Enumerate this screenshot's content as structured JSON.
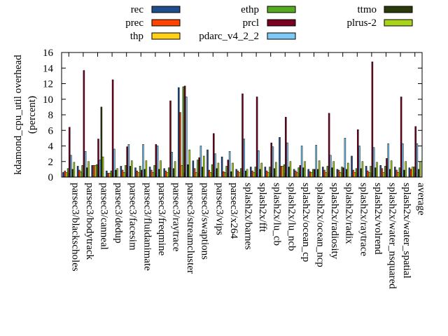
{
  "chart_data": {
    "type": "bar",
    "ylabel_lines": [
      "kdamond_cpu_util overhead",
      "(percent)"
    ],
    "xlabel": "",
    "ylim": [
      0,
      16
    ],
    "yticks": [
      0,
      2,
      4,
      6,
      8,
      10,
      12,
      14,
      16
    ],
    "grid": false,
    "legend_position": "top",
    "categories": [
      "parsec3/blackscholes",
      "parsec3/bodytrack",
      "parsec3/canneal",
      "parsec3/dedup",
      "parsec3/facesim",
      "parsec3/fluidanimate",
      "parsec3/freqmine",
      "parsec3/raytrace",
      "parsec3/streamcluster",
      "parsec3/swaptions",
      "parsec3/vips",
      "parsec3/x264",
      "splash2x/barnes",
      "splash2x/fft",
      "splash2x/lu_cb",
      "splash2x/lu_ncb",
      "splash2x/ocean_cp",
      "splash2x/ocean_ncp",
      "splash2x/radiosity",
      "splash2x/radix",
      "splash2x/raytrace",
      "splash2x/volrend",
      "splash2x/water_nsquared",
      "splash2x/water_spatial",
      "average"
    ],
    "series": [
      {
        "name": "rec",
        "color": "#1f4e8c",
        "values": [
          0.6,
          1.4,
          1.5,
          0.8,
          1.4,
          1.2,
          1.3,
          1.1,
          11.5,
          2.1,
          3.5,
          2.6,
          1.0,
          1.3,
          1.3,
          5.1,
          1.0,
          1.0,
          1.3,
          1.0,
          2.7,
          1.4,
          1.5,
          1.3,
          1.2
        ]
      },
      {
        "name": "prec",
        "color": "#ff4500",
        "values": [
          0.8,
          0.9,
          1.5,
          0.5,
          0.9,
          0.8,
          0.9,
          0.8,
          8.3,
          1.1,
          0.9,
          0.7,
          0.8,
          0.8,
          0.8,
          1.4,
          0.8,
          0.7,
          0.9,
          0.9,
          0.9,
          0.8,
          1.1,
          0.9,
          1.0
        ]
      },
      {
        "name": "thp",
        "color": "#ffd11a",
        "values": [
          0.6,
          0.7,
          1.5,
          0.5,
          0.6,
          0.6,
          0.6,
          0.6,
          1.5,
          0.6,
          0.6,
          0.6,
          0.6,
          0.6,
          0.6,
          1.4,
          0.6,
          0.6,
          0.6,
          0.6,
          0.6,
          0.6,
          0.6,
          0.6,
          1.3
        ]
      },
      {
        "name": "ethp",
        "color": "#55aa22",
        "values": [
          1.1,
          1.5,
          1.6,
          0.8,
          1.5,
          1.4,
          1.5,
          1.2,
          11.6,
          2.2,
          1.6,
          1.4,
          1.1,
          1.3,
          1.3,
          1.6,
          1.2,
          1.0,
          1.4,
          1.3,
          1.1,
          1.4,
          1.4,
          1.2,
          1.3
        ]
      },
      {
        "name": "prcl",
        "color": "#7a0020",
        "values": [
          6.4,
          13.7,
          4.9,
          12.5,
          3.9,
          0.9,
          4.2,
          9.8,
          11.7,
          2.5,
          5.6,
          2.2,
          10.7,
          10.3,
          4.4,
          7.7,
          1.5,
          1.0,
          8.2,
          1.2,
          6.1,
          14.8,
          2.4,
          10.3,
          6.5
        ]
      },
      {
        "name": "pdarc_v4_2_2",
        "color": "#7ec8f5",
        "values": [
          2.8,
          3.3,
          2.2,
          3.6,
          4.2,
          4.2,
          4.0,
          3.2,
          10.3,
          4.0,
          3.0,
          3.3,
          4.9,
          3.4,
          3.9,
          4.4,
          4.0,
          4.1,
          2.8,
          5.0,
          4.0,
          3.8,
          4.3,
          4.3,
          4.3
        ]
      },
      {
        "name": "ttmo",
        "color": "#2b3a0a",
        "values": [
          1.0,
          1.2,
          9.0,
          0.9,
          1.4,
          1.0,
          1.0,
          1.1,
          1.6,
          1.3,
          1.1,
          0.7,
          0.8,
          1.0,
          1.1,
          1.3,
          1.2,
          1.0,
          1.2,
          1.0,
          1.1,
          1.2,
          1.0,
          0.9,
          1.0
        ]
      },
      {
        "name": "plrus-2",
        "color": "#a8d41a",
        "values": [
          1.9,
          2.0,
          2.6,
          1.1,
          2.1,
          2.1,
          2.1,
          2.0,
          3.5,
          2.7,
          1.8,
          1.8,
          1.0,
          1.8,
          1.9,
          2.0,
          2.0,
          2.1,
          2.0,
          1.8,
          2.0,
          1.9,
          2.1,
          2.0,
          2.0
        ]
      }
    ]
  }
}
